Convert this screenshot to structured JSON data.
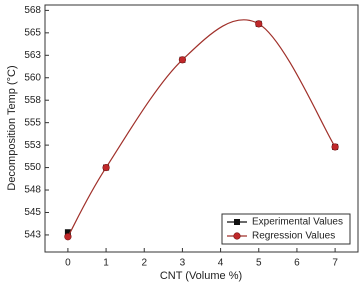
{
  "chart_data": {
    "type": "line",
    "x_label": "CNT (Volume %)",
    "y_label": "Decomposition Temp (°C)",
    "x": [
      0,
      1,
      3,
      5,
      7
    ],
    "series": [
      {
        "name": "Experimental Values",
        "color": "#111111",
        "marker": "square",
        "values": [
          542.8,
          550,
          562,
          566,
          552.3
        ]
      },
      {
        "name": "Regression Values",
        "color": "#c0282a",
        "marker": "circle",
        "line_color": "#a0302a",
        "values": [
          542.3,
          550,
          562,
          566,
          552.3
        ]
      }
    ],
    "xlim": [
      -0.6,
      7.6
    ],
    "xticks": [
      0,
      1,
      2,
      3,
      4,
      5,
      6,
      7
    ],
    "ylim": [
      540.6,
      568.1
    ],
    "yticks": [
      {
        "value": 542.5,
        "label": "543"
      },
      545,
      {
        "value": 547.5,
        "label": "548"
      },
      550,
      {
        "value": 552.5,
        "label": "553"
      },
      555,
      {
        "value": 557.5,
        "label": "558"
      },
      560,
      {
        "value": 562.5,
        "label": "563"
      },
      565,
      {
        "value": 567.5,
        "label": "568"
      }
    ],
    "legend": "lower right"
  }
}
